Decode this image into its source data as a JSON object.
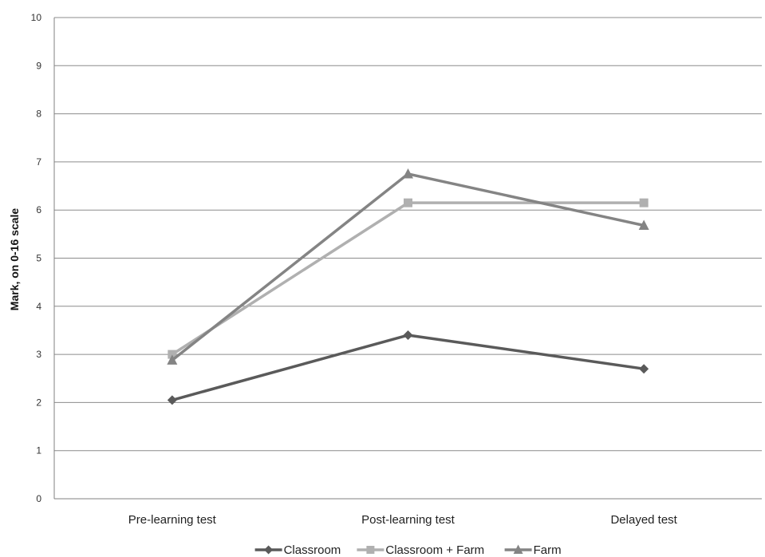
{
  "chart_data": {
    "type": "line",
    "title": "",
    "xlabel": "",
    "ylabel": "Mark, on 0-16 scale",
    "categories": [
      "Pre-learning test",
      "Post-learning test",
      "Delayed test"
    ],
    "ylim": [
      0,
      10
    ],
    "yticks": [
      0,
      1,
      2,
      3,
      4,
      5,
      6,
      7,
      8,
      9,
      10
    ],
    "grid": true,
    "legend_position": "bottom",
    "series": [
      {
        "name": "Classroom",
        "values": [
          2.05,
          3.4,
          2.7
        ],
        "color": "#5a5a5a",
        "marker": "diamond"
      },
      {
        "name": "Classroom + Farm",
        "values": [
          3.0,
          6.15,
          6.15
        ],
        "color": "#b0b0b0",
        "marker": "square"
      },
      {
        "name": "Farm",
        "values": [
          2.88,
          6.75,
          5.68
        ],
        "color": "#848484",
        "marker": "triangle"
      }
    ]
  }
}
